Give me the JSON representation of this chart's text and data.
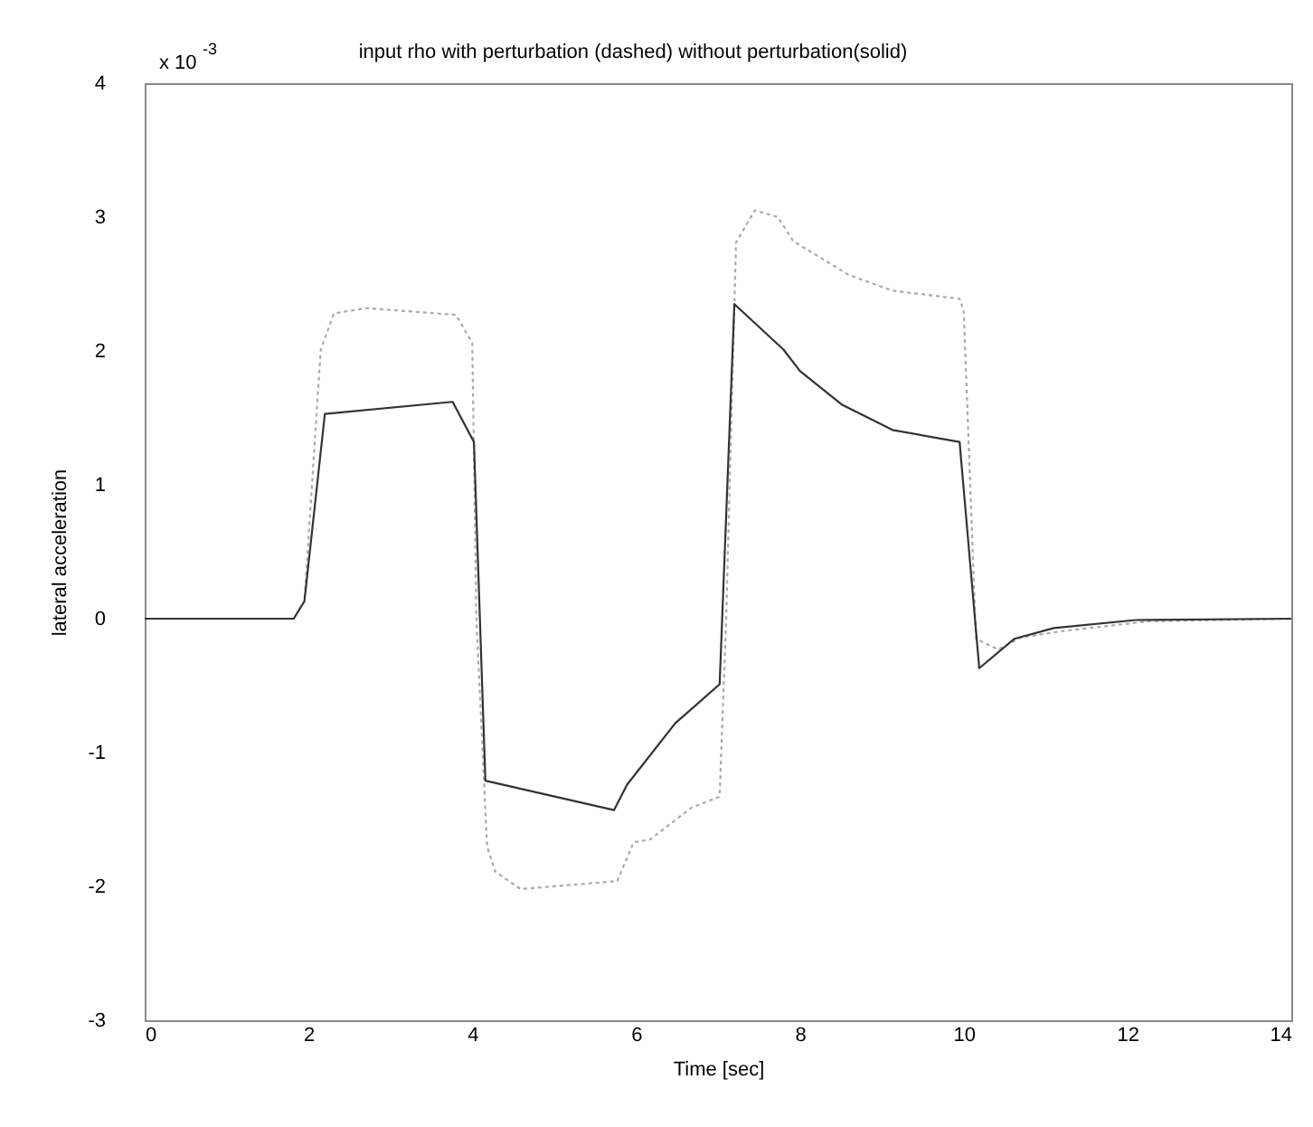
{
  "chart_data": {
    "type": "line",
    "title": "input rho  with perturbation (dashed) without perturbation(solid)",
    "xlabel": "Time          [sec]",
    "ylabel": "lateral acceleration",
    "annotations": [
      "x 10$^{-3}$"
    ],
    "xlim": [
      0,
      14
    ],
    "xticks": [
      0,
      2,
      4,
      6,
      8,
      10,
      12,
      14
    ],
    "ylim": [
      -3,
      4
    ],
    "yticks": [
      -3,
      -2,
      -1,
      0,
      1,
      2,
      3,
      4
    ],
    "grid": false,
    "marker": "none",
    "series": [
      {
        "color": "#aaaaaa",
        "line_style": "dotted",
        "x": [
          0,
          1.82,
          1.95,
          2.15,
          2.31,
          2.7,
          3.8,
          4.0,
          4.05,
          4.18,
          4.28,
          4.59,
          5.77,
          5.97,
          6.17,
          6.68,
          7.02,
          7.1,
          7.22,
          7.45,
          7.73,
          7.92,
          8.59,
          9.13,
          9.95,
          10.0,
          10.15,
          10.42,
          10.7,
          11.24,
          12.26,
          14
        ],
        "values": [
          0,
          0,
          0.13,
          2.01,
          2.28,
          2.32,
          2.27,
          2.06,
          0,
          -1.7,
          -1.89,
          -2.02,
          -1.96,
          -1.67,
          -1.65,
          -1.41,
          -1.33,
          0,
          2.81,
          3.05,
          3.0,
          2.82,
          2.57,
          2.45,
          2.39,
          2.3,
          -0.15,
          -0.23,
          -0.14,
          -0.09,
          -0.02,
          0
        ]
      },
      {
        "color": "#333333",
        "line_style": "solid",
        "x": [
          0,
          1.82,
          1.95,
          2.2,
          3.76,
          4.02,
          4.16,
          5.73,
          5.89,
          6.48,
          7.02,
          7.2,
          7.8,
          8.0,
          8.51,
          9.13,
          9.95,
          10.19,
          10.62,
          11.1,
          12.1,
          14
        ],
        "values": [
          0,
          0,
          0.13,
          1.53,
          1.62,
          1.32,
          -1.21,
          -1.43,
          -1.24,
          -0.78,
          -0.49,
          2.35,
          2.01,
          1.85,
          1.6,
          1.41,
          1.32,
          -0.37,
          -0.15,
          -0.07,
          -0.01,
          0
        ]
      }
    ]
  }
}
